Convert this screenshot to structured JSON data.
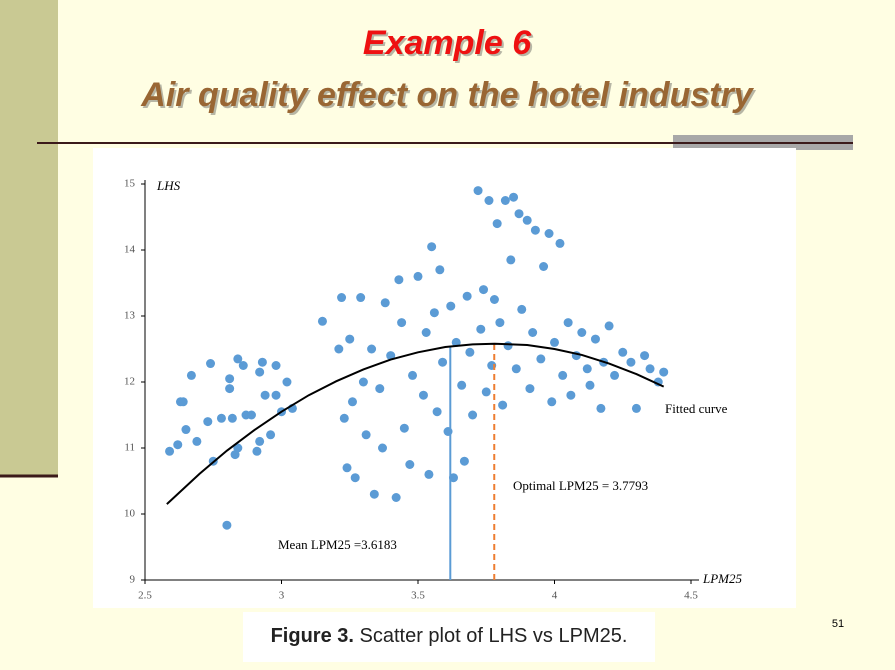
{
  "slide": {
    "title": "Example 6",
    "subtitle": "Air quality effect on the hotel industry",
    "page_number": "51",
    "caption": {
      "label": "Figure 3.",
      "text": "Scatter plot of LHS vs LPM25."
    }
  },
  "chart_data": {
    "type": "scatter",
    "y_label": "LHS",
    "x_label": "LPM25",
    "color": "#5b9bd5",
    "xlim": [
      2.5,
      4.5
    ],
    "xticks": [
      2.5,
      3,
      3.5,
      4,
      4.5
    ],
    "ylim": [
      9,
      15
    ],
    "yticks": [
      9,
      10,
      11,
      12,
      13,
      14,
      15
    ],
    "x": [
      2.59,
      2.62,
      2.63,
      2.64,
      2.65,
      2.67,
      2.69,
      2.73,
      2.74,
      2.75,
      2.78,
      2.8,
      2.81,
      2.81,
      2.82,
      2.83,
      2.84,
      2.84,
      2.86,
      2.87,
      2.89,
      2.91,
      2.92,
      2.92,
      2.93,
      2.94,
      2.96,
      2.98,
      2.98,
      3.0,
      3.02,
      3.04,
      3.15,
      3.21,
      3.22,
      3.23,
      3.24,
      3.25,
      3.26,
      3.27,
      3.29,
      3.3,
      3.31,
      3.33,
      3.34,
      3.36,
      3.37,
      3.38,
      3.4,
      3.42,
      3.43,
      3.44,
      3.45,
      3.47,
      3.48,
      3.5,
      3.52,
      3.53,
      3.54,
      3.55,
      3.56,
      3.57,
      3.58,
      3.59,
      3.61,
      3.62,
      3.63,
      3.64,
      3.66,
      3.67,
      3.68,
      3.69,
      3.7,
      3.72,
      3.73,
      3.74,
      3.75,
      3.76,
      3.77,
      3.78,
      3.79,
      3.8,
      3.81,
      3.82,
      3.83,
      3.84,
      3.85,
      3.86,
      3.87,
      3.88,
      3.9,
      3.91,
      3.92,
      3.93,
      3.95,
      3.96,
      3.98,
      3.99,
      4.0,
      4.02,
      4.03,
      4.05,
      4.06,
      4.08,
      4.1,
      4.12,
      4.13,
      4.15,
      4.17,
      4.18,
      4.2,
      4.22,
      4.25,
      4.28,
      4.3,
      4.33,
      4.35,
      4.38,
      4.4
    ],
    "values": [
      10.95,
      11.05,
      11.7,
      11.7,
      11.28,
      12.1,
      11.1,
      11.4,
      12.28,
      10.8,
      11.45,
      9.83,
      11.9,
      12.05,
      11.45,
      10.9,
      11.0,
      12.35,
      12.25,
      11.5,
      11.5,
      10.95,
      11.1,
      12.15,
      12.3,
      11.8,
      11.2,
      11.8,
      12.25,
      11.55,
      12.0,
      11.6,
      12.92,
      12.5,
      13.28,
      11.45,
      10.7,
      12.65,
      11.7,
      10.55,
      13.28,
      12.0,
      11.2,
      12.5,
      10.3,
      11.9,
      11.0,
      13.2,
      12.4,
      10.25,
      13.55,
      12.9,
      11.3,
      10.75,
      12.1,
      13.6,
      11.8,
      12.75,
      10.6,
      14.05,
      13.05,
      11.55,
      13.7,
      12.3,
      11.25,
      13.15,
      10.55,
      12.6,
      11.95,
      10.8,
      13.3,
      12.45,
      11.5,
      14.9,
      12.8,
      13.4,
      11.85,
      14.75,
      12.25,
      13.25,
      14.4,
      12.9,
      11.65,
      14.75,
      12.55,
      13.85,
      14.8,
      12.2,
      14.55,
      13.1,
      14.45,
      11.9,
      12.75,
      14.3,
      12.35,
      13.75,
      14.25,
      11.7,
      12.6,
      14.1,
      12.1,
      12.9,
      11.8,
      12.4,
      12.75,
      12.2,
      11.95,
      12.65,
      11.6,
      12.3,
      12.85,
      12.1,
      12.45,
      12.3,
      11.6,
      12.4,
      12.2,
      12.0,
      12.15
    ],
    "fitted_curve": {
      "label": "Fitted curve",
      "x": [
        2.58,
        2.7,
        2.8,
        2.9,
        3.0,
        3.1,
        3.2,
        3.3,
        3.4,
        3.5,
        3.6,
        3.7,
        3.78,
        3.9,
        4.0,
        4.1,
        4.2,
        4.3,
        4.4
      ],
      "values": [
        10.15,
        10.61,
        10.96,
        11.27,
        11.55,
        11.8,
        12.01,
        12.19,
        12.34,
        12.45,
        12.53,
        12.57,
        12.58,
        12.56,
        12.5,
        12.41,
        12.28,
        12.12,
        11.93
      ]
    },
    "annotations": [
      {
        "text": "Mean LPM25 =3.6183",
        "x": 3.6183,
        "color": "#5b9bd5"
      },
      {
        "text": "Optimal LPM25 = 3.7793",
        "x": 3.7793,
        "color": "#ed7d31"
      }
    ]
  }
}
